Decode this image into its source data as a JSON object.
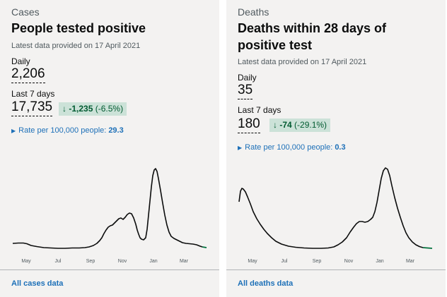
{
  "cases": {
    "category": "Cases",
    "title": "People tested positive",
    "updated": "Latest data provided on 17 April 2021",
    "daily_label": "Daily",
    "daily_value": "2,206",
    "week_label": "Last 7 days",
    "week_value": "17,735",
    "change_value": "-1,235",
    "change_pct": "(-6.5%)",
    "rate_label": "Rate per 100,000 people:",
    "rate_value": "29.3",
    "link": "All cases data",
    "months": [
      "May",
      "Jul",
      "Sep",
      "Nov",
      "Jan",
      "Mar"
    ]
  },
  "deaths": {
    "category": "Deaths",
    "title": "Deaths within 28 days of positive test",
    "updated": "Latest data provided on 17 April 2021",
    "daily_label": "Daily",
    "daily_value": "35",
    "week_label": "Last 7 days",
    "week_value": "180",
    "change_value": "-74",
    "change_pct": "(-29.1%)",
    "rate_label": "Rate per 100,000 people:",
    "rate_value": "0.3",
    "link": "All deaths data",
    "months": [
      "May",
      "Jul",
      "Sep",
      "Nov",
      "Jan",
      "Mar"
    ]
  },
  "colors": {
    "change_bg": "#cce2d8",
    "change_text": "#005a30",
    "link": "#1d70b8",
    "line": "#0b0c0c",
    "highlight": "#00703c"
  },
  "icons": {
    "arrow": "arrow-down-icon",
    "expand": "triangle-right-icon"
  }
}
